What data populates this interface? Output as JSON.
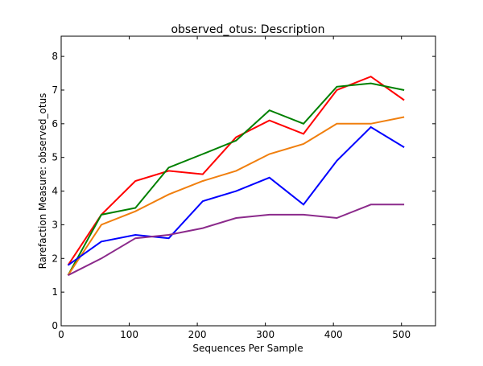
{
  "chart_data": {
    "type": "line",
    "title": "observed_otus: Description",
    "xlabel": "Sequences Per Sample",
    "ylabel": "Rarefaction Measure: observed_otus",
    "xlim": [
      0,
      550
    ],
    "ylim": [
      0,
      8.6
    ],
    "xticks": [
      0,
      100,
      200,
      300,
      400,
      500
    ],
    "yticks": [
      0,
      1,
      2,
      3,
      4,
      5,
      6,
      7,
      8
    ],
    "grid": false,
    "legend": "none",
    "x": [
      10,
      59,
      109,
      158,
      208,
      257,
      306,
      356,
      405,
      455,
      504
    ],
    "series": [
      {
        "color": "#ff0000",
        "values": [
          1.8,
          3.3,
          4.3,
          4.6,
          4.5,
          5.6,
          6.1,
          5.7,
          7.0,
          7.4,
          6.7
        ]
      },
      {
        "color": "#008000",
        "values": [
          1.5,
          3.3,
          3.5,
          4.7,
          5.1,
          5.5,
          6.4,
          6.0,
          7.1,
          7.2,
          7.0
        ]
      },
      {
        "color": "#f07f0e",
        "values": [
          1.5,
          3.0,
          3.4,
          3.9,
          4.3,
          4.6,
          5.1,
          5.4,
          6.0,
          6.0,
          6.2
        ]
      },
      {
        "color": "#0000ff",
        "values": [
          1.8,
          2.5,
          2.7,
          2.6,
          3.7,
          4.0,
          4.4,
          3.6,
          4.9,
          5.9,
          5.3
        ]
      },
      {
        "color": "#8b2a8b",
        "values": [
          1.5,
          2.0,
          2.6,
          2.7,
          2.9,
          3.2,
          3.3,
          3.3,
          3.2,
          3.6,
          3.6
        ]
      }
    ]
  }
}
